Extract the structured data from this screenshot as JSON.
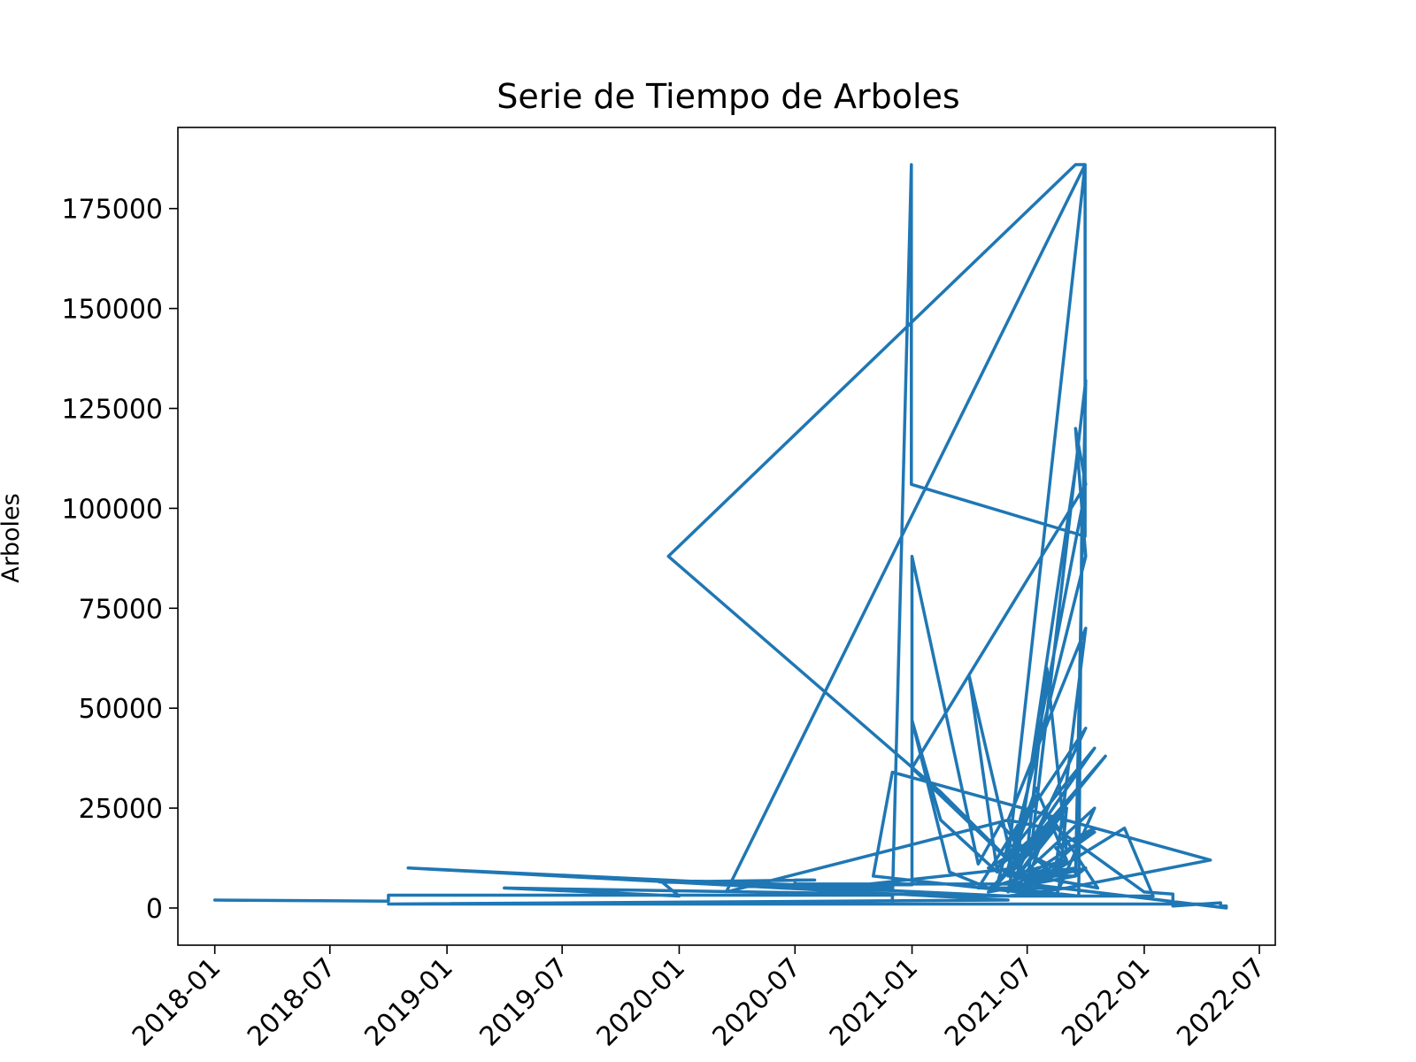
{
  "chart_data": {
    "type": "line",
    "title": "Serie de Tiempo de Arboles",
    "xlabel": "",
    "ylabel": "Arboles",
    "x_ticks": [
      "2018-01",
      "2018-07",
      "2019-01",
      "2019-07",
      "2020-01",
      "2020-07",
      "2021-01",
      "2021-07",
      "2022-01",
      "2022-07"
    ],
    "y_ticks": [
      "0",
      "25000",
      "50000",
      "75000",
      "100000",
      "125000",
      "150000",
      "175000"
    ],
    "xlim": [
      "2017-11-04",
      "2022-07-26"
    ],
    "ylim": [
      -9300,
      195300
    ],
    "grid": false,
    "color": "#1f77b4",
    "series": [
      {
        "x": [
          "2018-01-01",
          "2018-10-01",
          "2018-10-01",
          "2020-12-01",
          "2020-12-01",
          "2020-12-31",
          "2020-12-31",
          "2021-09-30",
          "2021-09-30",
          "2021-09-15",
          "2019-12-15",
          "2019-12-15",
          "2021-02-15",
          "2021-06-15",
          "2020-10-15",
          "2021-01-01",
          "2021-01-01",
          "2021-04-15",
          "2021-05-20",
          "2021-07-01",
          "2021-08-01",
          "2021-09-01",
          "2021-10-15",
          "2021-07-01",
          "2021-05-01",
          "2021-03-01",
          "2021-01-01",
          "2021-02-15",
          "2021-05-15",
          "2021-04-01",
          "2021-06-01",
          "2021-08-15",
          "2021-10-01",
          "2021-06-01",
          "2020-03-15",
          "2021-09-30",
          "2021-06-01",
          "2021-01-01",
          "2021-10-01",
          "2021-09-15",
          "2021-10-01",
          "2021-06-01",
          "2021-07-15",
          "2021-09-01",
          "2021-07-01",
          "2021-06-01",
          "2021-08-01",
          "2021-07-01",
          "2021-09-15",
          "2021-06-15",
          "2021-09-01",
          "2021-05-15",
          "2021-10-15",
          "2021-06-15",
          "2021-09-15",
          "2021-07-01",
          "2021-10-01",
          "2021-09-15",
          "2021-10-01",
          "2021-06-01",
          "2021-09-20",
          "2021-09-25",
          "2021-06-01",
          "2021-10-01",
          "2021-06-01",
          "2021-05-15",
          "2021-09-01",
          "2021-08-20",
          "2021-04-15",
          "2021-07-15",
          "2021-06-15",
          "2021-08-01",
          "2021-06-01",
          "2021-08-15",
          "2021-05-01",
          "2021-10-20",
          "2021-08-15",
          "2021-06-01",
          "2021-09-15",
          "2021-05-01",
          "2021-11-01",
          "2021-06-01",
          "2021-09-01",
          "2021-08-15",
          "2021-10-15",
          "2021-07-01",
          "2021-12-01",
          "2022-01-15",
          "2021-06-01",
          "2021-09-01",
          "2022-04-15",
          "2020-12-01",
          "2020-11-01",
          "2021-08-15",
          "2021-10-15",
          "2021-06-01",
          "2021-08-15",
          "2022-01-01",
          "2022-02-15",
          "2022-02-15",
          "2022-05-01",
          "2022-05-01",
          "2022-05-10",
          "2022-05-10",
          "2021-07-01",
          "2020-07-01",
          "2020-07-01",
          "2020-08-01",
          "2019-12-01",
          "2020-12-01",
          "2019-12-01",
          "2020-01-01",
          "2019-04-01",
          "2021-06-01",
          "2018-11-01",
          "2021-06-01",
          "2018-10-01",
          "2022-04-01"
        ],
        "y": [
          2000,
          1700,
          3200,
          3200,
          1500,
          186000,
          106000,
          93000,
          186000,
          186000,
          88000,
          88000,
          29000,
          10000,
          5800,
          5800,
          88000,
          11000,
          21000,
          14000,
          60000,
          14000,
          19000,
          8000,
          5000,
          9000,
          47000,
          22000,
          9000,
          58000,
          16000,
          10000,
          70000,
          22000,
          4000,
          186000,
          12000,
          35000,
          106000,
          120000,
          88000,
          10000,
          30000,
          12000,
          5000,
          22000,
          20000,
          7000,
          10000,
          8000,
          25000,
          10000,
          40000,
          12000,
          110000,
          6000,
          132000,
          8000,
          10000,
          5000,
          3000,
          100000,
          4000,
          45000,
          16000,
          6000,
          25000,
          5000,
          5000,
          28000,
          16000,
          10000,
          5000,
          20000,
          10000,
          5000,
          21000,
          8000,
          8000,
          4000,
          38000,
          8000,
          12000,
          15000,
          20000,
          5000,
          20000,
          3000,
          3000,
          5000,
          12000,
          34000,
          8000,
          3000,
          25000,
          5000,
          20000,
          4000,
          3500,
          500,
          1300,
          500,
          500,
          0,
          6000,
          6000,
          7000,
          7000,
          6500,
          5000,
          7000,
          3000,
          5000,
          3000,
          10000,
          2000,
          1000,
          1000
        ]
      }
    ]
  }
}
